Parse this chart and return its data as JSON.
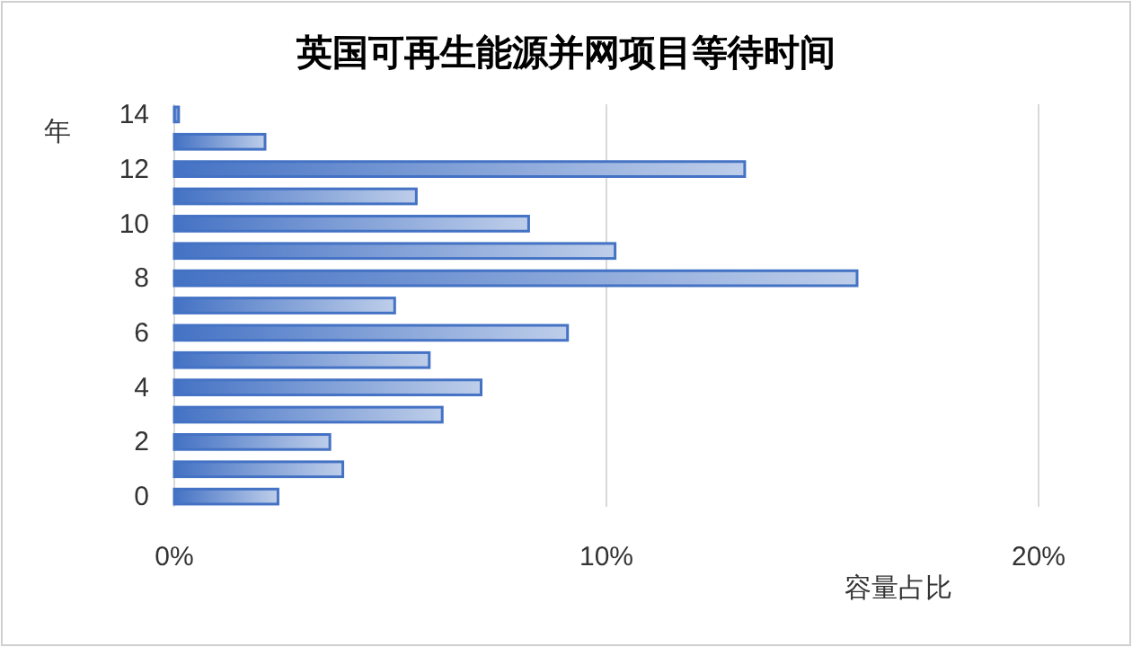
{
  "chart_data": {
    "type": "bar",
    "orientation": "horizontal",
    "title": "英国可再生能源并网项目等待时间",
    "xlabel": "容量占比",
    "ylabel": "年",
    "categories": [
      "14",
      null,
      "12",
      null,
      "10",
      null,
      "8",
      null,
      "6",
      null,
      "4",
      null,
      "2",
      null,
      "0"
    ],
    "values": [
      0.1,
      2.1,
      13.2,
      5.6,
      8.2,
      10.2,
      15.8,
      5.1,
      9.1,
      5.9,
      7.1,
      6.2,
      3.6,
      3.9,
      2.4
    ],
    "color": "#4472c4",
    "xlim": [
      0,
      20
    ],
    "xticks": [
      {
        "value": 0,
        "label": "0%"
      },
      {
        "value": 10,
        "label": "10%"
      },
      {
        "value": 20,
        "label": "20%"
      }
    ],
    "grid": "x"
  }
}
